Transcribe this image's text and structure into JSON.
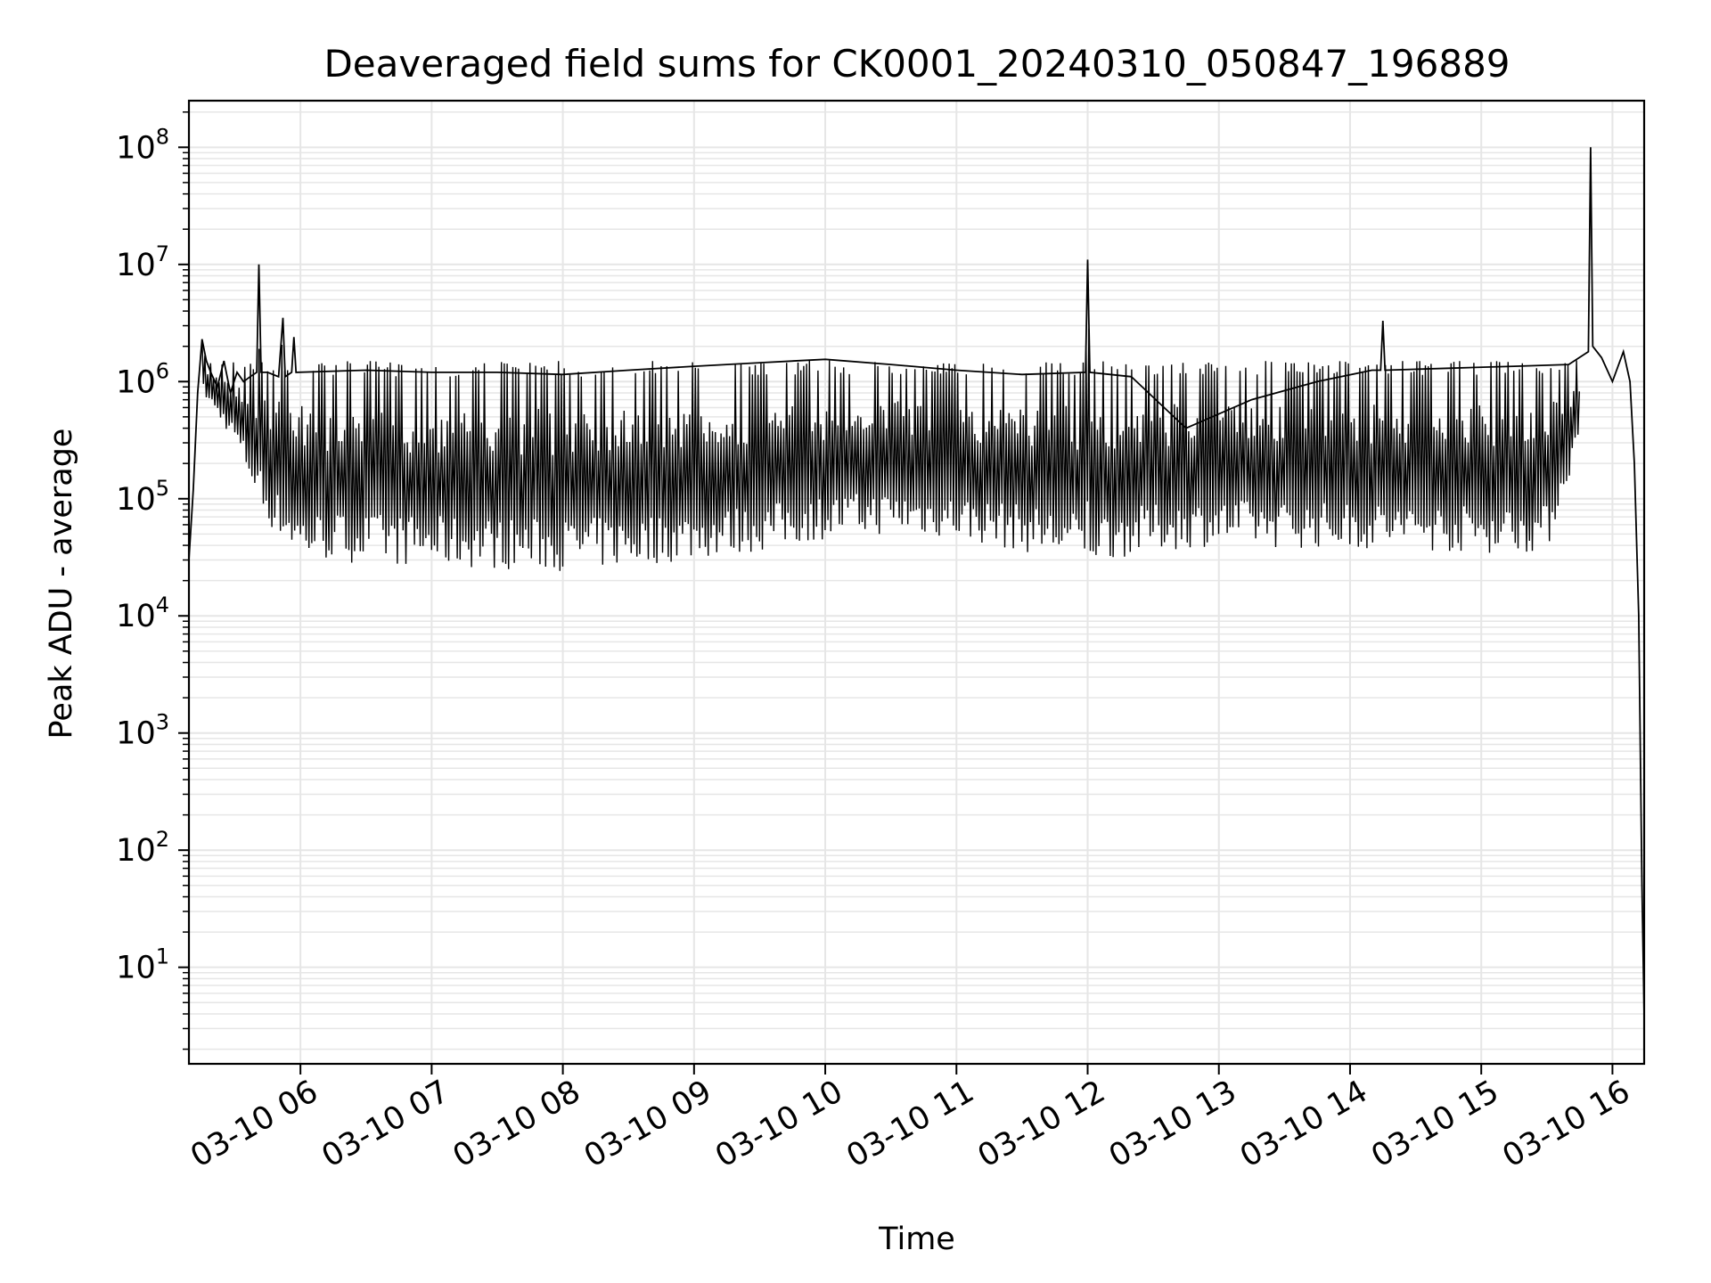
{
  "chart_data": {
    "type": "line",
    "title": "Deaveraged field sums for CK0001_20240310_050847_196889",
    "xlabel": "Time",
    "ylabel": "Peak ADU - average",
    "x_scale": "time",
    "y_scale": "log",
    "xlim": [
      "2024-03-10T05:09:00",
      "2024-03-10T16:14:30"
    ],
    "ylim": [
      1.5,
      250000000
    ],
    "x_ticks": [
      {
        "value": "2024-03-10T06:00:00",
        "label": "03-10 06"
      },
      {
        "value": "2024-03-10T07:00:00",
        "label": "03-10 07"
      },
      {
        "value": "2024-03-10T08:00:00",
        "label": "03-10 08"
      },
      {
        "value": "2024-03-10T09:00:00",
        "label": "03-10 09"
      },
      {
        "value": "2024-03-10T10:00:00",
        "label": "03-10 10"
      },
      {
        "value": "2024-03-10T11:00:00",
        "label": "03-10 11"
      },
      {
        "value": "2024-03-10T12:00:00",
        "label": "03-10 12"
      },
      {
        "value": "2024-03-10T13:00:00",
        "label": "03-10 13"
      },
      {
        "value": "2024-03-10T14:00:00",
        "label": "03-10 14"
      },
      {
        "value": "2024-03-10T15:00:00",
        "label": "03-10 15"
      },
      {
        "value": "2024-03-10T16:00:00",
        "label": "03-10 16"
      }
    ],
    "y_ticks": [
      {
        "value": 10,
        "base": "10",
        "exp": "1"
      },
      {
        "value": 100,
        "base": "10",
        "exp": "2"
      },
      {
        "value": 1000,
        "base": "10",
        "exp": "3"
      },
      {
        "value": 10000,
        "base": "10",
        "exp": "4"
      },
      {
        "value": 100000,
        "base": "10",
        "exp": "5"
      },
      {
        "value": 1000000,
        "base": "10",
        "exp": "6"
      },
      {
        "value": 10000000,
        "base": "10",
        "exp": "7"
      },
      {
        "value": 100000000,
        "base": "10",
        "exp": "8"
      }
    ],
    "grid": true,
    "minor_grid": true,
    "line_color": "#000000",
    "grid_color": "#e6e6e6",
    "series": [
      {
        "x": [
          "2024-03-10T05:09:00",
          "2024-03-10T05:11:00",
          "2024-03-10T05:13:00",
          "2024-03-10T05:15:00",
          "2024-03-10T05:17:00",
          "2024-03-10T05:19:00",
          "2024-03-10T05:22:00",
          "2024-03-10T05:25:00",
          "2024-03-10T05:28:00",
          "2024-03-10T05:31:00",
          "2024-03-10T05:34:00",
          "2024-03-10T05:37:00",
          "2024-03-10T05:40:00",
          "2024-03-10T05:41:00",
          "2024-03-10T05:42:00",
          "2024-03-10T05:45:00",
          "2024-03-10T05:50:00",
          "2024-03-10T05:52:00",
          "2024-03-10T05:53:00",
          "2024-03-10T05:56:00",
          "2024-03-10T05:57:00",
          "2024-03-10T05:58:00",
          "2024-03-10T06:30:00",
          "2024-03-10T07:00:00",
          "2024-03-10T07:30:00",
          "2024-03-10T08:00:00",
          "2024-03-10T08:30:00",
          "2024-03-10T09:00:00",
          "2024-03-10T09:30:00",
          "2024-03-10T10:00:00",
          "2024-03-10T10:30:00",
          "2024-03-10T11:00:00",
          "2024-03-10T11:30:00",
          "2024-03-10T11:59:00",
          "2024-03-10T12:00:00",
          "2024-03-10T12:01:00",
          "2024-03-10T12:20:00",
          "2024-03-10T12:45:00",
          "2024-03-10T13:15:00",
          "2024-03-10T13:45:00",
          "2024-03-10T14:10:00",
          "2024-03-10T14:14:00",
          "2024-03-10T14:15:00",
          "2024-03-10T14:16:00",
          "2024-03-10T14:45:00",
          "2024-03-10T15:15:00",
          "2024-03-10T15:40:00",
          "2024-03-10T15:49:00",
          "2024-03-10T15:50:00",
          "2024-03-10T15:51:00",
          "2024-03-10T15:55:00",
          "2024-03-10T16:00:00",
          "2024-03-10T16:05:00",
          "2024-03-10T16:08:00",
          "2024-03-10T16:10:00",
          "2024-03-10T16:12:00",
          "2024-03-10T16:13:30",
          "2024-03-10T16:14:30"
        ],
        "y": [
          30000,
          120000,
          800000,
          2300000,
          1500000,
          1200000,
          900000,
          1500000,
          800000,
          1200000,
          1000000,
          1100000,
          1200000,
          10000000,
          1200000,
          1200000,
          1100000,
          3500000,
          1100000,
          1200000,
          2400000,
          1200000,
          1250000,
          1200000,
          1200000,
          1150000,
          1250000,
          1350000,
          1450000,
          1550000,
          1400000,
          1250000,
          1150000,
          1200000,
          11000000,
          1200000,
          1100000,
          400000,
          700000,
          1000000,
          1250000,
          1250000,
          3300000,
          1250000,
          1300000,
          1350000,
          1400000,
          1800000,
          100000000,
          2000000,
          1600000,
          1000000,
          1800000,
          1000000,
          200000,
          10000,
          50,
          3.8
        ],
        "lower_envelope_x": [
          "2024-03-10T05:15:00",
          "2024-03-10T05:30:00",
          "2024-03-10T05:45:00",
          "2024-03-10T06:00:00",
          "2024-03-10T06:30:00",
          "2024-03-10T07:00:00",
          "2024-03-10T07:30:00",
          "2024-03-10T08:00:00",
          "2024-03-10T08:30:00",
          "2024-03-10T09:00:00",
          "2024-03-10T09:30:00",
          "2024-03-10T10:00:00",
          "2024-03-10T10:30:00",
          "2024-03-10T11:00:00",
          "2024-03-10T11:30:00",
          "2024-03-10T12:00:00",
          "2024-03-10T12:30:00",
          "2024-03-10T13:00:00",
          "2024-03-10T13:30:00",
          "2024-03-10T14:00:00",
          "2024-03-10T14:30:00",
          "2024-03-10T15:00:00",
          "2024-03-10T15:30:00",
          "2024-03-10T15:45:00"
        ],
        "lower_envelope_y": [
          800000,
          300000,
          60000,
          30000,
          28000,
          26000,
          25000,
          24000,
          26000,
          30000,
          35000,
          45000,
          50000,
          45000,
          35000,
          28000,
          35000,
          40000,
          38000,
          37000,
          36000,
          34000,
          35000,
          300000
        ]
      }
    ]
  }
}
